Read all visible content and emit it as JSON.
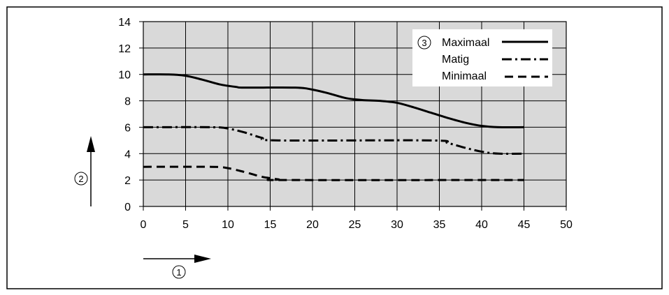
{
  "chart_data": {
    "type": "line",
    "xlabel": "",
    "ylabel": "",
    "x_ticks": [
      "0",
      "5",
      "10",
      "15",
      "20",
      "25",
      "30",
      "35",
      "40",
      "45",
      "50"
    ],
    "y_ticks": [
      "0",
      "2",
      "4",
      "6",
      "8",
      "10",
      "12",
      "14"
    ],
    "xlim": [
      0,
      50
    ],
    "ylim": [
      0,
      14
    ],
    "grid": true,
    "legend_position": "top-right",
    "legend_marker": "3",
    "x_axis_marker": "1",
    "y_axis_marker": "2",
    "series": [
      {
        "name": "Maximaal",
        "style": "solid",
        "points": [
          [
            0,
            10
          ],
          [
            3,
            10
          ],
          [
            5,
            9.9
          ],
          [
            7,
            9.6
          ],
          [
            9,
            9.25
          ],
          [
            11,
            9.05
          ],
          [
            12,
            9
          ],
          [
            18,
            9
          ],
          [
            20,
            8.85
          ],
          [
            22,
            8.55
          ],
          [
            24,
            8.2
          ],
          [
            26,
            8.05
          ],
          [
            28,
            8
          ],
          [
            30,
            7.85
          ],
          [
            32,
            7.5
          ],
          [
            34,
            7.1
          ],
          [
            36,
            6.7
          ],
          [
            38,
            6.35
          ],
          [
            40,
            6.1
          ],
          [
            42,
            6
          ],
          [
            45,
            6
          ]
        ]
      },
      {
        "name": "Matig",
        "style": "dashdot",
        "points": [
          [
            0,
            6
          ],
          [
            8,
            6
          ],
          [
            10,
            5.9
          ],
          [
            12,
            5.6
          ],
          [
            14,
            5.2
          ],
          [
            16,
            5
          ],
          [
            34,
            5
          ],
          [
            36,
            4.8
          ],
          [
            38,
            4.45
          ],
          [
            40,
            4.15
          ],
          [
            42,
            4
          ],
          [
            45,
            4
          ]
        ]
      },
      {
        "name": "Minimaal",
        "style": "dashed",
        "points": [
          [
            0,
            3
          ],
          [
            8,
            3
          ],
          [
            10,
            2.9
          ],
          [
            12,
            2.6
          ],
          [
            14,
            2.25
          ],
          [
            16,
            2.05
          ],
          [
            17,
            2
          ],
          [
            45,
            2
          ]
        ]
      }
    ]
  },
  "colors": {
    "plot_background": "#d9d9d9",
    "grid": "#000000",
    "line": "#000000",
    "frame": "#000000"
  }
}
